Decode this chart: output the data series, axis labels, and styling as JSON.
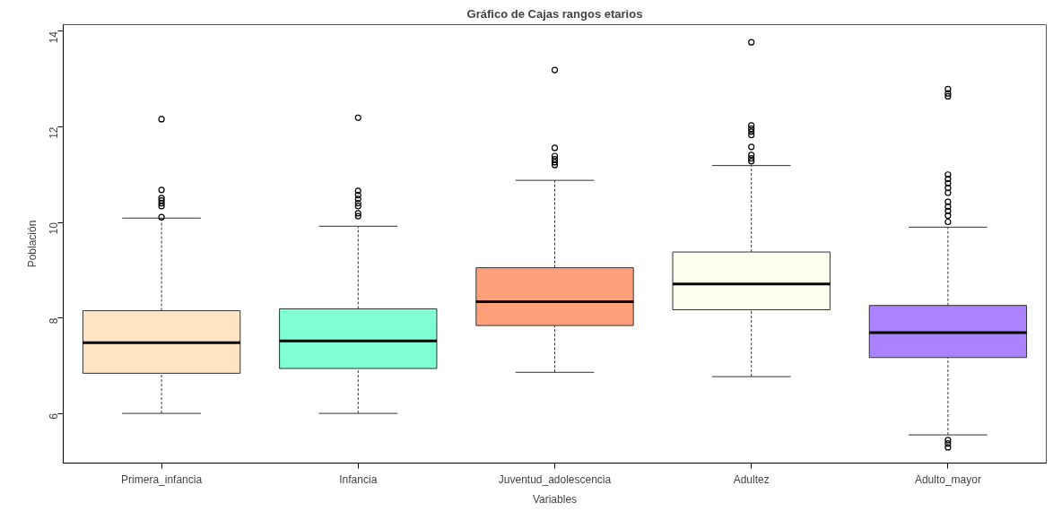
{
  "chart_data": {
    "type": "box",
    "title": "Gráfico de Cajas rangos etarios",
    "xlabel": "Variables",
    "ylabel": "Población",
    "categories": [
      "Primera_infancia",
      "Infancia",
      "Juventud_adolescencia",
      "Adultez",
      "Adulto_mayor"
    ],
    "colors": [
      "#ffe4c4",
      "#7fffd4",
      "#ffa07a",
      "#fffff0",
      "#ab82ff"
    ],
    "boxes": [
      {
        "low": 6.0,
        "q1": 6.84,
        "median": 7.48,
        "q3": 8.15,
        "high": 10.09,
        "outliers": [
          12.16,
          10.68,
          10.51,
          10.46,
          10.4,
          10.34,
          10.11
        ]
      },
      {
        "low": 6.0,
        "q1": 6.94,
        "median": 7.52,
        "q3": 8.19,
        "high": 9.92,
        "outliers": [
          12.19,
          10.66,
          10.57,
          10.49,
          10.4,
          10.34,
          10.19,
          10.13
        ]
      },
      {
        "low": 6.86,
        "q1": 7.84,
        "median": 8.34,
        "q3": 9.05,
        "high": 10.88,
        "outliers": [
          13.19,
          11.56,
          11.39,
          11.32,
          11.26,
          11.2
        ]
      },
      {
        "low": 6.77,
        "q1": 8.17,
        "median": 8.71,
        "q3": 9.38,
        "high": 11.19,
        "outliers": [
          13.77,
          12.03,
          11.96,
          11.9,
          11.83,
          11.58,
          11.41,
          11.34,
          11.28
        ]
      },
      {
        "low": 5.55,
        "q1": 7.17,
        "median": 7.69,
        "q3": 8.26,
        "high": 9.9,
        "outliers": [
          12.79,
          12.7,
          12.64,
          11.0,
          10.91,
          10.82,
          10.72,
          10.62,
          10.43,
          10.33,
          10.24,
          10.14,
          10.01,
          5.44,
          5.37,
          5.29
        ]
      }
    ],
    "ylim": [
      4.96,
      14.14
    ],
    "yticks": [
      6,
      8,
      10,
      12,
      14
    ],
    "grid": false
  }
}
